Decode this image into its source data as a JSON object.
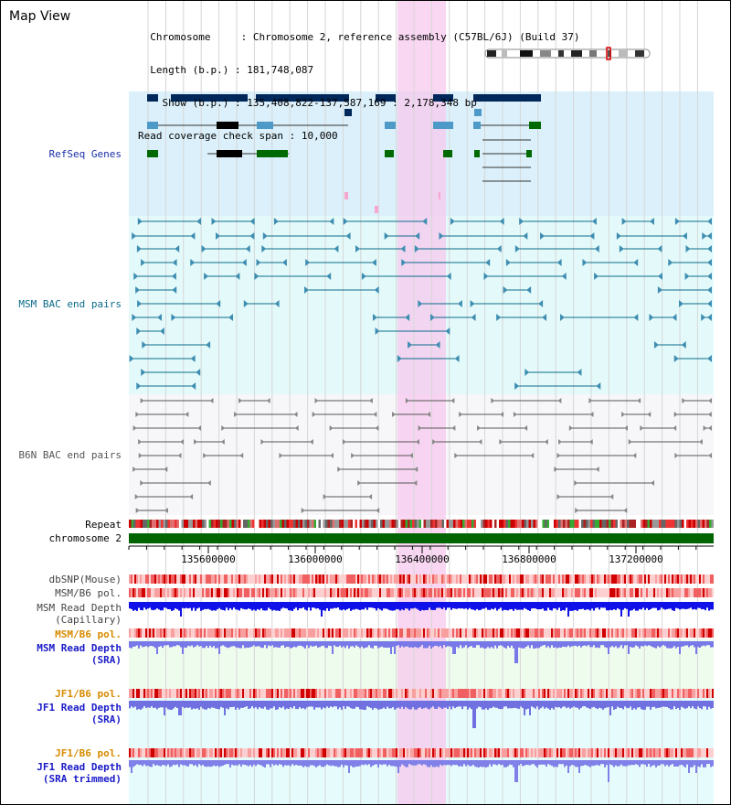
{
  "title": "Map View",
  "info": {
    "chromosome_label": "Chromosome",
    "chromosome_value": "Chromosome 2, reference assembly (C57BL/6J) (Build 37)",
    "length_label": "Length (b.p.)",
    "length_value": "181,748,087",
    "show_label": "Show (b.p.)",
    "show_value": "135,408,822-137,587,169 : 2,178,348 bp",
    "coverage_label": "Read coverage check span",
    "coverage_value": "10,000"
  },
  "tracks": {
    "refseq": "RefSeq Genes",
    "msm_bac": "MSM BAC end pairs",
    "b6n_bac": "B6N BAC end pairs",
    "repeat": "Repeat",
    "chromosome": "chromosome 2",
    "dbsnp": "dbSNP(Mouse)",
    "msm_b6_pol_1": "MSM/B6 pol.",
    "msm_read_depth_1": "MSM Read Depth",
    "msm_read_depth_1_sub": "(Capillary)",
    "msm_b6_pol_2": "MSM/B6 pol.",
    "msm_read_depth_2": "MSM Read Depth",
    "msm_read_depth_2_sub": "(SRA)",
    "jf1_b6_pol_1": "JF1/B6 pol.",
    "jf1_read_depth_1": "JF1 Read Depth",
    "jf1_read_depth_1_sub": "(SRA)",
    "jf1_b6_pol_2": "JF1/B6 pol.",
    "jf1_read_depth_2": "JF1 Read Depth",
    "jf1_read_depth_2_sub": "(SRA trimmed)"
  },
  "ruler_ticks": [
    "135600000",
    "136000000",
    "136400000",
    "136800000",
    "137200000"
  ],
  "colors": {
    "refseq_bg": "#dbf0fb",
    "msm_bac_bg": "#e4fafa",
    "b6n_bac_bg": "#f8f8fb",
    "highlight": "#f7c8ee",
    "msm_label": "#0b6c8a",
    "b6n_label": "#555555",
    "refseq_label": "#1a2fa8",
    "pol_orange": "#d88b00",
    "depth_blue": "#1a1ac8",
    "chromosome_bar": "#006400",
    "gene_navy": "#00285a",
    "gene_green": "#006a00",
    "gene_steel": "#4d9ac8"
  }
}
